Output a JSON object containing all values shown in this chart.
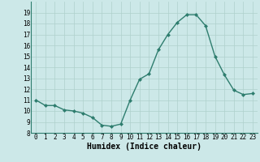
{
  "x": [
    0,
    1,
    2,
    3,
    4,
    5,
    6,
    7,
    8,
    9,
    10,
    11,
    12,
    13,
    14,
    15,
    16,
    17,
    18,
    19,
    20,
    21,
    22,
    23
  ],
  "y": [
    11.0,
    10.5,
    10.5,
    10.1,
    10.0,
    9.8,
    9.4,
    8.7,
    8.6,
    8.8,
    11.0,
    12.9,
    13.4,
    15.6,
    17.0,
    18.1,
    18.8,
    18.8,
    17.8,
    15.0,
    13.3,
    11.9,
    11.5,
    11.6
  ],
  "line_color": "#2e7d6e",
  "marker": "D",
  "marker_size": 2,
  "background_color": "#cce8e8",
  "grid_color": "#afd0cc",
  "xlabel": "Humidex (Indice chaleur)",
  "xlabel_fontsize": 7,
  "ylim": [
    8,
    20
  ],
  "xlim": [
    -0.5,
    23.5
  ],
  "yticks": [
    8,
    9,
    10,
    11,
    12,
    13,
    14,
    15,
    16,
    17,
    18,
    19
  ],
  "xticks": [
    0,
    1,
    2,
    3,
    4,
    5,
    6,
    7,
    8,
    9,
    10,
    11,
    12,
    13,
    14,
    15,
    16,
    17,
    18,
    19,
    20,
    21,
    22,
    23
  ],
  "tick_fontsize": 5.5,
  "linewidth": 1.0
}
